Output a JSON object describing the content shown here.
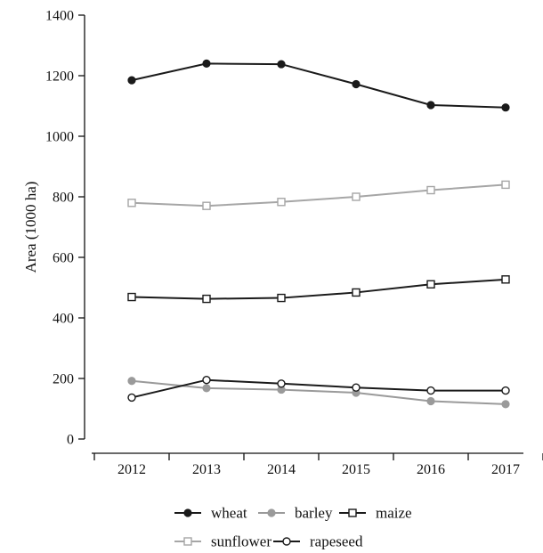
{
  "chart_data": {
    "type": "line",
    "title": "",
    "xlabel": "",
    "ylabel": "Area (1000 ha)",
    "x": [
      "2012",
      "2013",
      "2014",
      "2015",
      "2016",
      "2017"
    ],
    "ylim": [
      0,
      1400
    ],
    "yticks": [
      0,
      200,
      400,
      600,
      800,
      1000,
      1200,
      1400
    ],
    "grid": false,
    "legend_position": "bottom",
    "series": [
      {
        "name": "wheat",
        "values": [
          1185,
          1240,
          1238,
          1172,
          1103,
          1095
        ],
        "color": "#1a1a1a",
        "marker": "filled-circle"
      },
      {
        "name": "barley",
        "values": [
          192,
          168,
          163,
          153,
          125,
          115
        ],
        "color": "#9a9a9a",
        "marker": "filled-circle"
      },
      {
        "name": "maize",
        "values": [
          469,
          463,
          466,
          484,
          511,
          527
        ],
        "color": "#1a1a1a",
        "marker": "open-square"
      },
      {
        "name": "sunflower",
        "values": [
          780,
          770,
          783,
          800,
          822,
          840
        ],
        "color": "#a6a6a6",
        "marker": "open-square"
      },
      {
        "name": "rapeseed",
        "values": [
          137,
          195,
          183,
          170,
          160,
          160
        ],
        "color": "#1a1a1a",
        "marker": "open-circle"
      }
    ]
  }
}
